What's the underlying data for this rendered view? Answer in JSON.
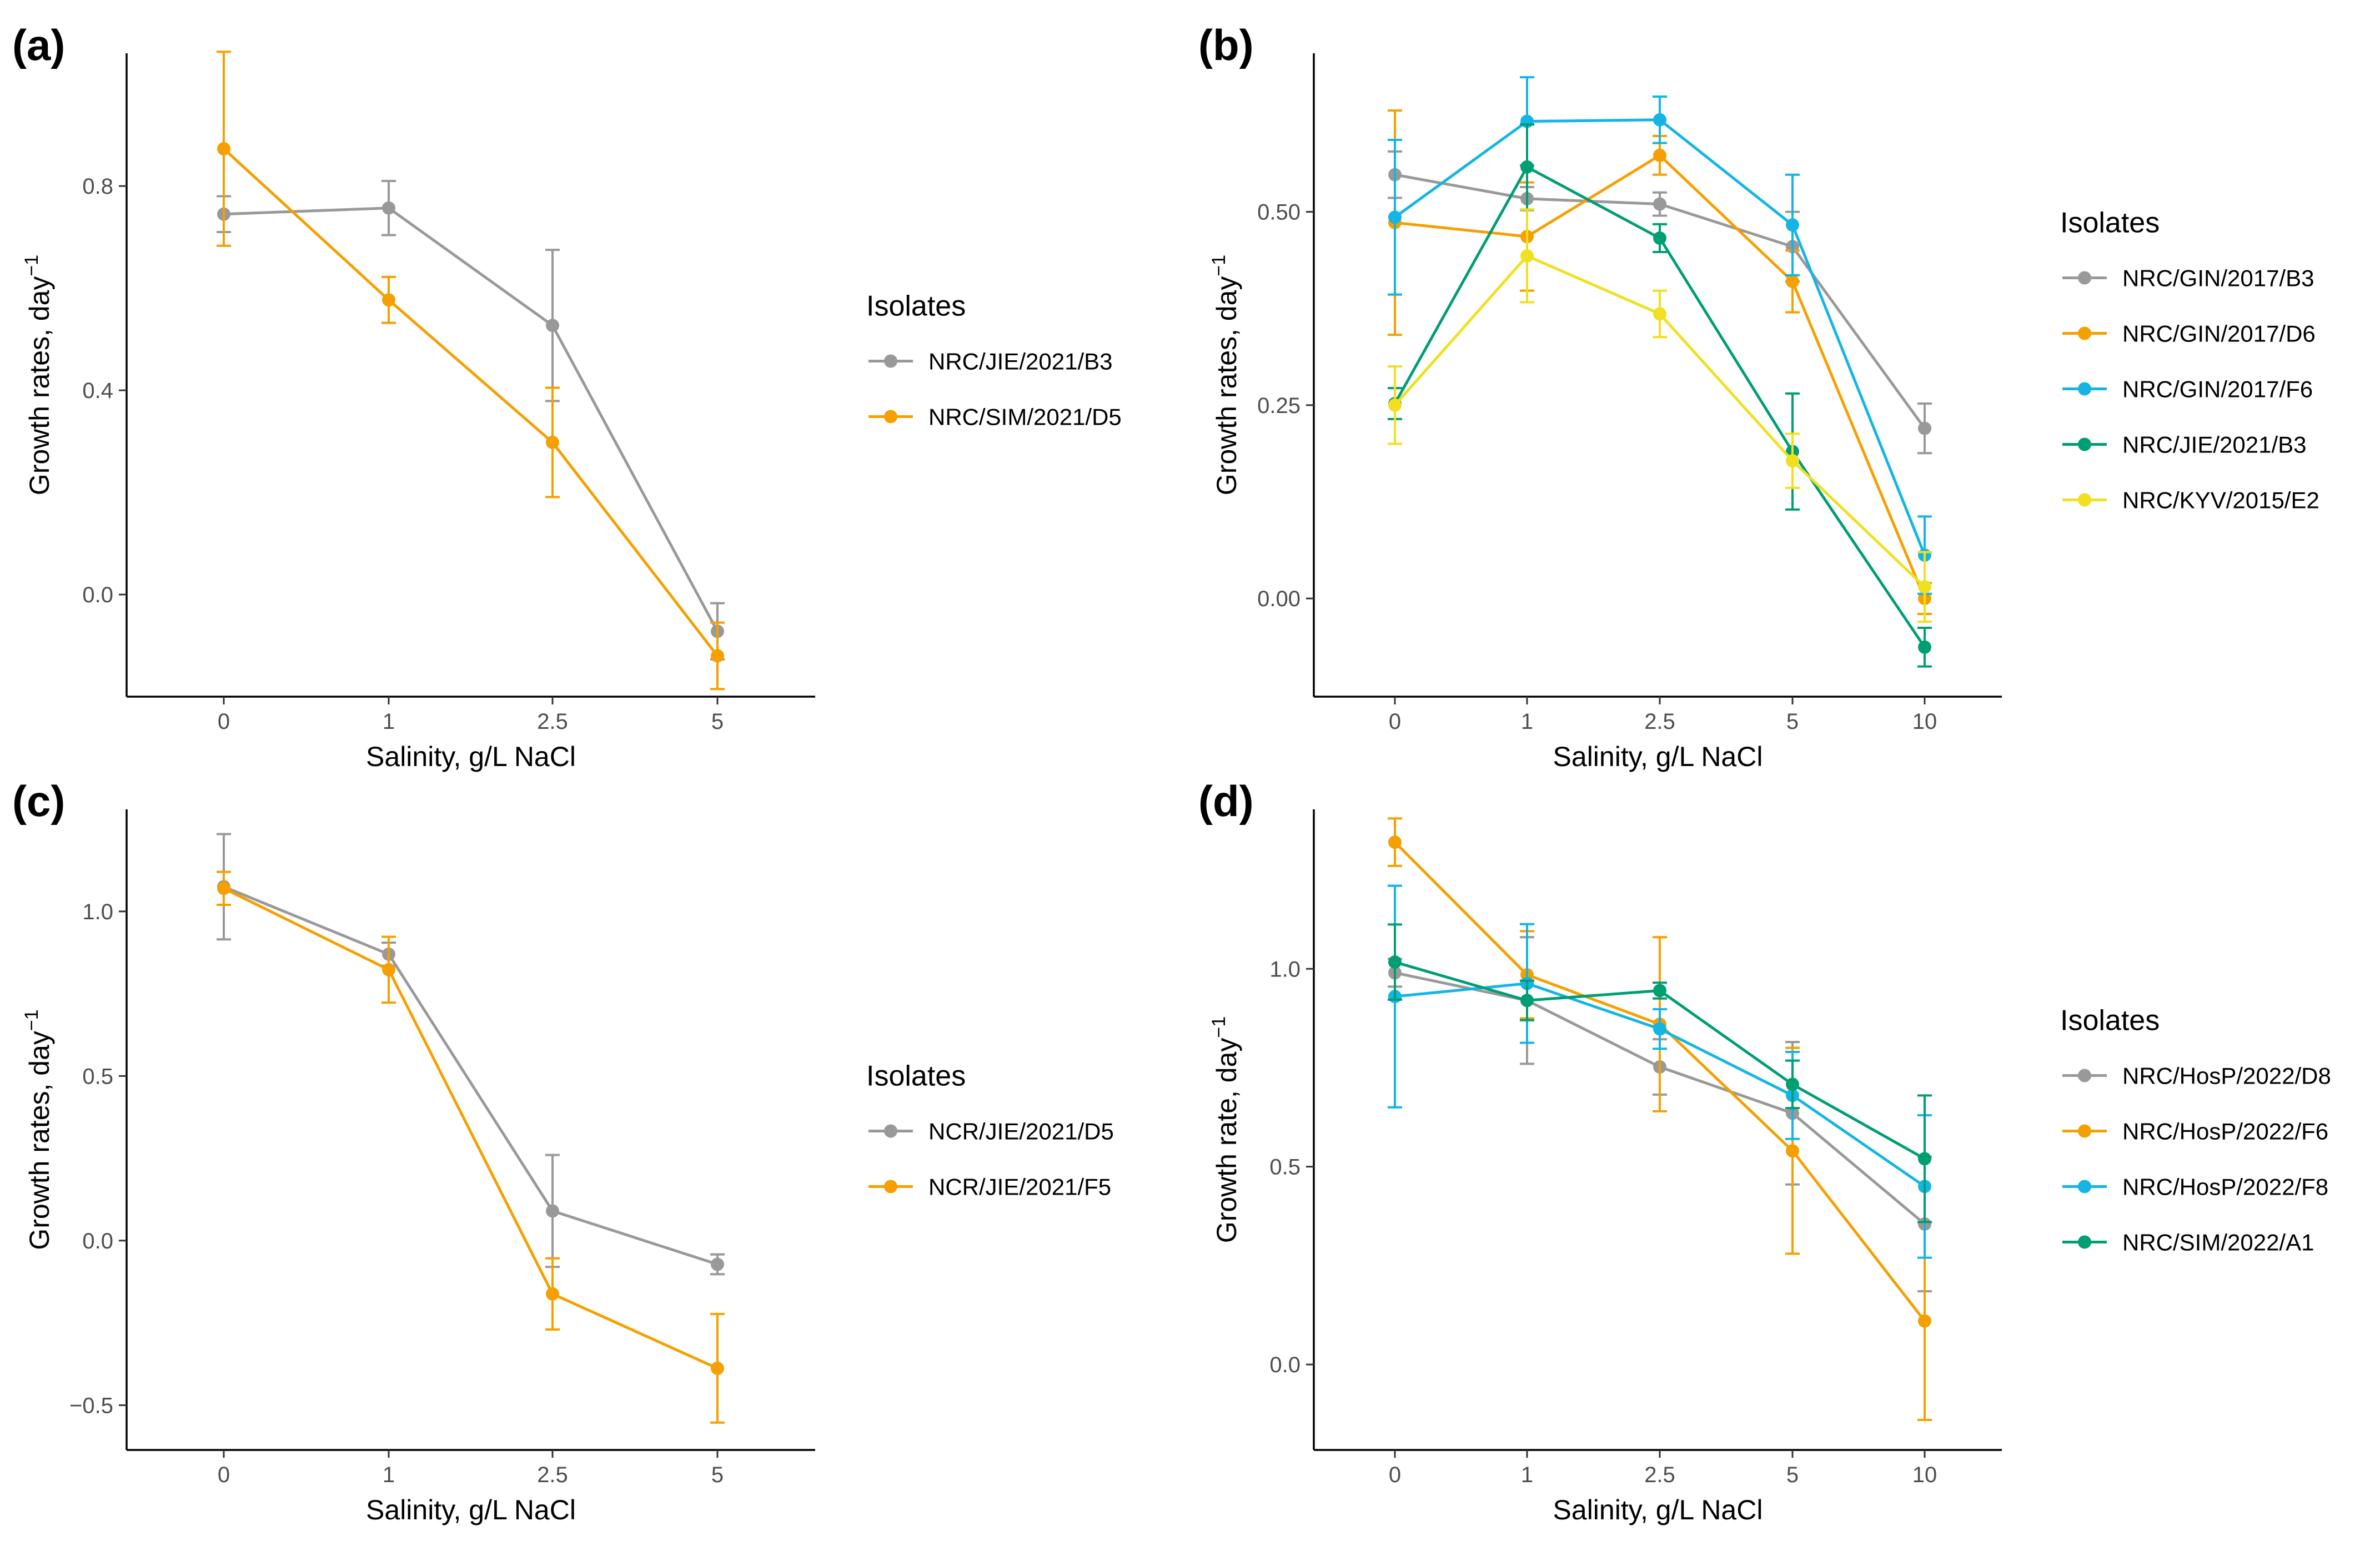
{
  "chart_data": [
    {
      "type": "line",
      "panel_label": "(a)",
      "xlabel": "Salinity, g/L NaCl",
      "ylabel": "Growth rates, day",
      "ylabel_superscript": "−1",
      "categories": [
        "0",
        "1",
        "2.5",
        "5"
      ],
      "ylim": [
        -0.2,
        1.06
      ],
      "yticks": [
        0.0,
        0.4,
        0.8
      ],
      "ytick_labels": [
        "0.0",
        "0.4",
        "0.8"
      ],
      "legend_title": "Isolates",
      "series": [
        {
          "name": "NRC/JIE/2021/B3",
          "color": "#999999",
          "values": [
            0.745,
            0.757,
            0.527,
            -0.072
          ],
          "err": [
            0.035,
            0.053,
            0.148,
            0.055
          ]
        },
        {
          "name": "NRC/SIM/2021/D5",
          "color": "#F5A000",
          "values": [
            0.873,
            0.577,
            0.298,
            -0.12
          ],
          "err": [
            0.19,
            0.045,
            0.107,
            0.065
          ]
        }
      ]
    },
    {
      "type": "line",
      "panel_label": "(b)",
      "xlabel": "Salinity, g/L NaCl",
      "ylabel": "Growth rates, day",
      "ylabel_superscript": "−1",
      "categories": [
        "0",
        "1",
        "2.5",
        "5",
        "10"
      ],
      "ylim": [
        -0.127,
        0.705
      ],
      "yticks": [
        0.0,
        0.25,
        0.5
      ],
      "ytick_labels": [
        "0.00",
        "0.25",
        "0.50"
      ],
      "legend_title": "Isolates",
      "series": [
        {
          "name": "NRC/GIN/2017/B3",
          "color": "#999999",
          "values": [
            0.548,
            0.517,
            0.51,
            0.455,
            0.22
          ],
          "err": [
            0.03,
            0.015,
            0.015,
            0.045,
            0.032
          ]
        },
        {
          "name": "NRC/GIN/2017/D6",
          "color": "#F5A000",
          "values": [
            0.486,
            0.468,
            0.573,
            0.41,
            0.0
          ],
          "err": [
            0.145,
            0.07,
            0.025,
            0.04,
            0.02
          ]
        },
        {
          "name": "NRC/GIN/2017/F6",
          "color": "#14B5E5",
          "values": [
            0.493,
            0.617,
            0.619,
            0.483,
            0.056
          ],
          "err": [
            0.1,
            0.057,
            0.03,
            0.065,
            0.05
          ]
        },
        {
          "name": "NRC/JIE/2021/B3",
          "color": "#009E73",
          "values": [
            0.252,
            0.558,
            0.466,
            0.19,
            -0.063
          ],
          "err": [
            0.02,
            0.055,
            0.018,
            0.075,
            0.025
          ]
        },
        {
          "name": "NRC/KYV/2015/E2",
          "color": "#F0E020",
          "values": [
            0.25,
            0.443,
            0.368,
            0.178,
            0.015
          ],
          "err": [
            0.05,
            0.06,
            0.03,
            0.035,
            0.045
          ]
        }
      ]
    },
    {
      "type": "line",
      "panel_label": "(c)",
      "xlabel": "Salinity, g/L NaCl",
      "ylabel": "Growth rates, day",
      "ylabel_superscript": "−1",
      "categories": [
        "0",
        "1",
        "2.5",
        "5"
      ],
      "ylim": [
        -0.636,
        1.31
      ],
      "yticks": [
        -0.5,
        0.0,
        0.5,
        1.0
      ],
      "ytick_labels": [
        "−0.5",
        "0.0",
        "0.5",
        "1.0"
      ],
      "legend_title": "Isolates",
      "series": [
        {
          "name": "NCR/JIE/2021/D5",
          "color": "#999999",
          "values": [
            1.075,
            0.87,
            0.09,
            -0.072
          ],
          "err": [
            0.16,
            0.035,
            0.17,
            0.03
          ]
        },
        {
          "name": "NCR/JIE/2021/F5",
          "color": "#F5A000",
          "values": [
            1.07,
            0.823,
            -0.162,
            -0.388
          ],
          "err": [
            0.05,
            0.1,
            0.108,
            0.165
          ]
        }
      ]
    },
    {
      "type": "line",
      "panel_label": "(d)",
      "xlabel": "Salinity, g/L NaCl",
      "ylabel": "Growth rate, day",
      "ylabel_superscript": "−1",
      "categories": [
        "0",
        "1",
        "2.5",
        "5",
        "10"
      ],
      "ylim": [
        -0.216,
        1.403
      ],
      "yticks": [
        0.0,
        0.5,
        1.0
      ],
      "ytick_labels": [
        "0.0",
        "0.5",
        "1.0"
      ],
      "legend_title": "Isolates",
      "series": [
        {
          "name": "NRC/HosP/2022/D8",
          "color": "#999999",
          "values": [
            0.99,
            0.92,
            0.752,
            0.635,
            0.355
          ],
          "err": [
            0.035,
            0.16,
            0.07,
            0.18,
            0.17
          ]
        },
        {
          "name": "NRC/HosP/2022/F6",
          "color": "#F5A000",
          "values": [
            1.32,
            0.985,
            0.86,
            0.54,
            0.11
          ],
          "err": [
            0.06,
            0.11,
            0.22,
            0.26,
            0.25
          ]
        },
        {
          "name": "NRC/HosP/2022/F8",
          "color": "#14B5E5",
          "values": [
            0.93,
            0.963,
            0.848,
            0.68,
            0.45
          ],
          "err": [
            0.28,
            0.15,
            0.05,
            0.11,
            0.18
          ]
        },
        {
          "name": "NRC/SIM/2022/A1",
          "color": "#009E73",
          "values": [
            1.017,
            0.92,
            0.945,
            0.708,
            0.52
          ],
          "err": [
            0.095,
            0.05,
            0.02,
            0.06,
            0.16
          ]
        }
      ]
    }
  ]
}
